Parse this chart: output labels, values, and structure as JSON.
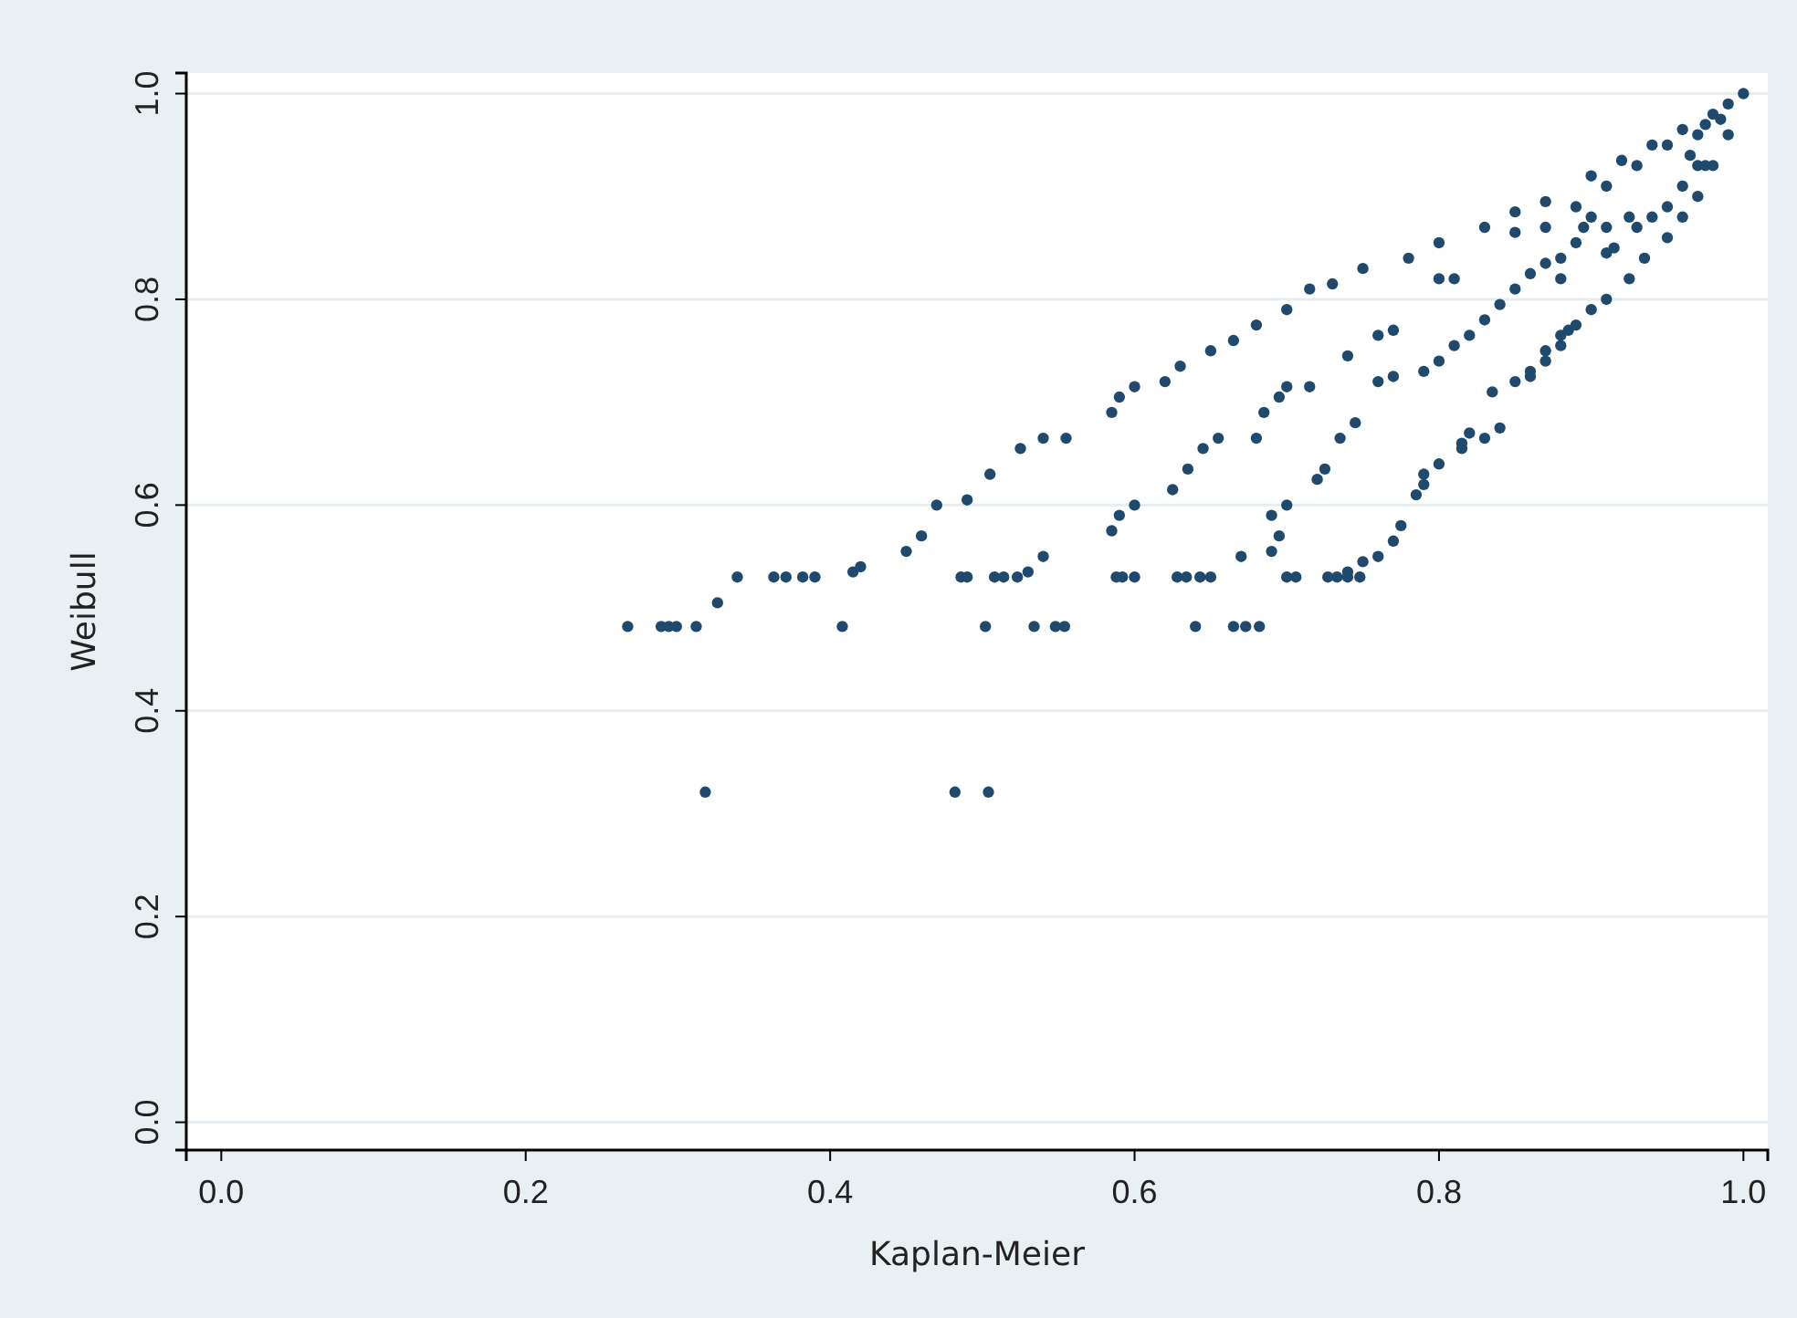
{
  "chart_data": {
    "type": "scatter",
    "xlabel": "Kaplan-Meier",
    "ylabel": "Weibull",
    "xlim": [
      -0.023,
      1.016
    ],
    "ylim": [
      -0.027,
      1.02
    ],
    "xticks": [
      {
        "value": 0,
        "label": "0.0"
      },
      0.2,
      0.4,
      0.6,
      0.8,
      {
        "value": 1,
        "label": "1.0"
      }
    ],
    "yticks": [
      {
        "value": 0,
        "label": "0.0"
      },
      0.2,
      0.4,
      0.6,
      0.8,
      {
        "value": 1,
        "label": "1.0"
      }
    ],
    "grid": "y",
    "marker": "circle",
    "series": [
      {
        "color": "#1f4a6e",
        "x": [
          0.267,
          0.289,
          0.294,
          0.299,
          0.312,
          0.408,
          0.502,
          0.534,
          0.548,
          0.554,
          0.64,
          0.665,
          0.673,
          0.682,
          0.339,
          0.363,
          0.371,
          0.382,
          0.39,
          0.486,
          0.49,
          0.508,
          0.514,
          0.523,
          0.588,
          0.592,
          0.6,
          0.628,
          0.634,
          0.643,
          0.65,
          0.7,
          0.706,
          0.727,
          0.733,
          0.74,
          0.748,
          0.318,
          0.482,
          0.504,
          0.326,
          0.415,
          0.42,
          0.45,
          0.46,
          0.47,
          0.49,
          0.505,
          0.525,
          0.54,
          0.555,
          0.585,
          0.59,
          0.6,
          0.62,
          0.63,
          0.65,
          0.665,
          0.68,
          0.7,
          0.715,
          0.73,
          0.75,
          0.78,
          0.8,
          0.83,
          0.85,
          0.87,
          0.9,
          0.92,
          0.94,
          0.96,
          0.98,
          1.0,
          0.53,
          0.54,
          0.585,
          0.59,
          0.6,
          0.625,
          0.635,
          0.645,
          0.655,
          0.68,
          0.685,
          0.695,
          0.7,
          0.715,
          0.74,
          0.76,
          0.77,
          0.8,
          0.85,
          0.87,
          0.89,
          0.91,
          0.93,
          0.95,
          0.67,
          0.69,
          0.695,
          0.69,
          0.7,
          0.74,
          0.75,
          0.76,
          0.77,
          0.775,
          0.785,
          0.79,
          0.8,
          0.815,
          0.82,
          0.835,
          0.85,
          0.86,
          0.87,
          0.88,
          0.89,
          0.9,
          0.91,
          0.925,
          0.935,
          0.95,
          0.96,
          0.97,
          0.98,
          0.99,
          0.72,
          0.725,
          0.735,
          0.745,
          0.76,
          0.77,
          0.79,
          0.8,
          0.81,
          0.82,
          0.83,
          0.84,
          0.85,
          0.86,
          0.87,
          0.88,
          0.89,
          0.91,
          0.925,
          0.79,
          0.815,
          0.83,
          0.84,
          0.86,
          0.87,
          0.88,
          0.885,
          0.91,
          0.915,
          0.93,
          0.94,
          0.95,
          0.96,
          0.97,
          0.88,
          0.81,
          0.895,
          0.9,
          0.97,
          0.975,
          0.985,
          0.99,
          0.965,
          0.975
        ],
        "values": [
          0.482,
          0.482,
          0.482,
          0.482,
          0.482,
          0.482,
          0.482,
          0.482,
          0.482,
          0.482,
          0.482,
          0.482,
          0.482,
          0.482,
          0.53,
          0.53,
          0.53,
          0.53,
          0.53,
          0.53,
          0.53,
          0.53,
          0.53,
          0.53,
          0.53,
          0.53,
          0.53,
          0.53,
          0.53,
          0.53,
          0.53,
          0.53,
          0.53,
          0.53,
          0.53,
          0.53,
          0.53,
          0.321,
          0.321,
          0.321,
          0.505,
          0.535,
          0.54,
          0.555,
          0.57,
          0.6,
          0.605,
          0.63,
          0.655,
          0.665,
          0.665,
          0.69,
          0.705,
          0.715,
          0.72,
          0.735,
          0.75,
          0.76,
          0.775,
          0.79,
          0.81,
          0.815,
          0.83,
          0.84,
          0.855,
          0.87,
          0.885,
          0.895,
          0.92,
          0.935,
          0.95,
          0.965,
          0.98,
          1.0,
          0.535,
          0.55,
          0.575,
          0.59,
          0.6,
          0.615,
          0.635,
          0.655,
          0.665,
          0.665,
          0.69,
          0.705,
          0.715,
          0.715,
          0.745,
          0.765,
          0.77,
          0.82,
          0.865,
          0.87,
          0.89,
          0.91,
          0.93,
          0.95,
          0.55,
          0.555,
          0.57,
          0.59,
          0.6,
          0.535,
          0.545,
          0.55,
          0.565,
          0.58,
          0.61,
          0.63,
          0.64,
          0.655,
          0.67,
          0.71,
          0.72,
          0.73,
          0.75,
          0.765,
          0.775,
          0.79,
          0.8,
          0.82,
          0.84,
          0.86,
          0.88,
          0.9,
          0.93,
          0.96,
          0.625,
          0.635,
          0.665,
          0.68,
          0.72,
          0.725,
          0.73,
          0.74,
          0.755,
          0.765,
          0.78,
          0.795,
          0.81,
          0.825,
          0.835,
          0.84,
          0.855,
          0.87,
          0.88,
          0.62,
          0.66,
          0.665,
          0.675,
          0.725,
          0.74,
          0.755,
          0.77,
          0.845,
          0.85,
          0.87,
          0.88,
          0.89,
          0.91,
          0.93,
          0.82,
          0.82,
          0.87,
          0.88,
          0.96,
          0.97,
          0.975,
          0.99,
          0.94,
          0.93
        ]
      }
    ]
  }
}
